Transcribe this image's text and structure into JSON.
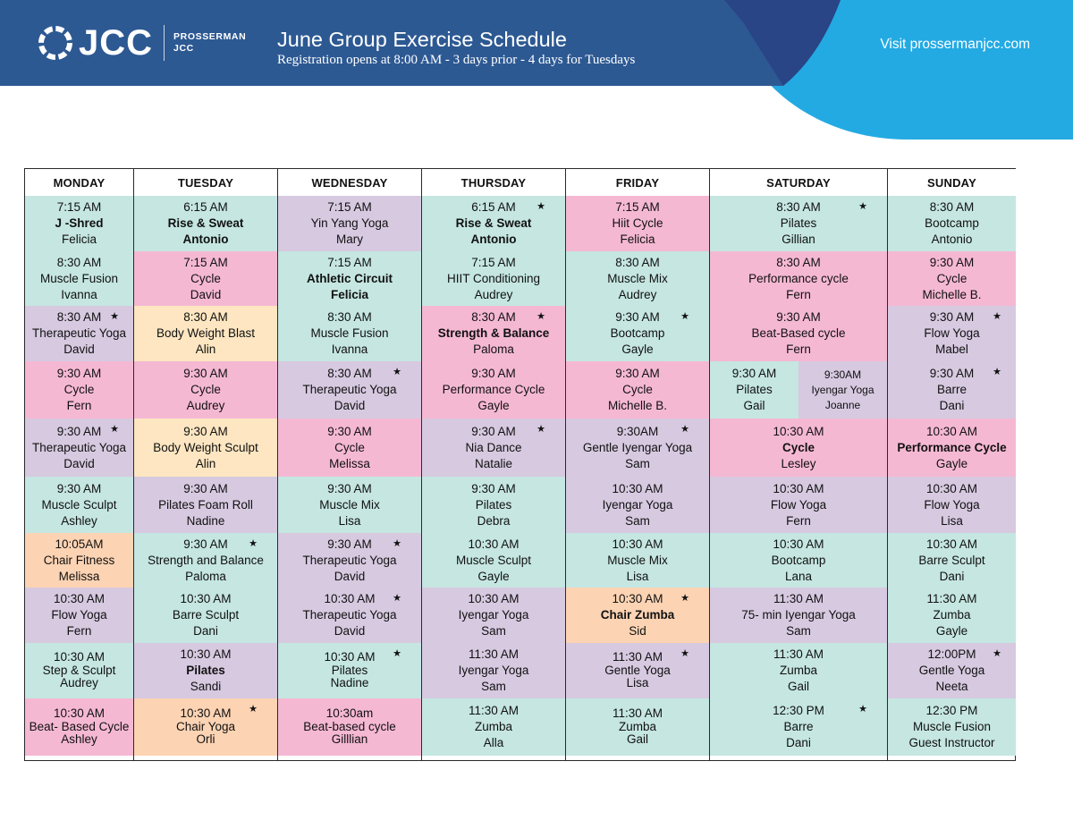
{
  "brand": {
    "wordmark": "JCC",
    "sub_line1": "PROSSERMAN",
    "sub_line2": "JCC"
  },
  "header": {
    "title": "June Group Exercise Schedule",
    "subtitle": "Registration opens at 8:00 AM - 3 days prior  - 4 days for Tuesdays",
    "link": "Visit prossermanjcc.com"
  },
  "colors": {
    "header_dark": "#2d5993",
    "header_light": "#23aae3",
    "teal": "#c5e6e1",
    "pink": "#f5b8d3",
    "lavender": "#d6c9e0",
    "yellow": "#fde6c1",
    "peach": "#fcd3b3"
  },
  "star_symbol": "★",
  "days": [
    {
      "name": "MONDAY",
      "classes": [
        {
          "time": "7:15 AM",
          "name": "J -Shred",
          "instructor": "Felicia",
          "color": "teal",
          "bold": true
        },
        {
          "time": "8:30 AM",
          "name": "Muscle Fusion",
          "instructor": "Ivanna",
          "color": "teal"
        },
        {
          "time": "8:30 AM",
          "name": "Therapeutic Yoga",
          "instructor": "David",
          "color": "lavender",
          "star": true
        },
        {
          "time": "9:30 AM",
          "name": "Cycle",
          "instructor": "Fern",
          "color": "pink"
        },
        {
          "time": "9:30 AM",
          "name": "Therapeutic Yoga",
          "instructor": "David",
          "color": "lavender",
          "star": true
        },
        {
          "time": "9:30 AM",
          "name": "Muscle Sculpt",
          "instructor": "Ashley",
          "color": "teal"
        },
        {
          "time": "10:05AM",
          "name": "Chair Fitness",
          "instructor": "Melissa",
          "color": "peach"
        },
        {
          "time": "10:30 AM",
          "name": "Flow Yoga",
          "instructor": "Fern",
          "color": "lavender"
        },
        {
          "time": "10:30 AM",
          "name": "Step & Sculpt",
          "instructor": "Audrey",
          "color": "teal",
          "tight": true
        },
        {
          "time": "10:30 AM",
          "name": "Beat- Based Cycle",
          "instructor": "Ashley",
          "color": "pink",
          "tight": true
        }
      ]
    },
    {
      "name": "TUESDAY",
      "classes": [
        {
          "time": "6:15 AM",
          "name": "Rise & Sweat",
          "instructor": "Antonio",
          "color": "teal",
          "bold": true,
          "bold_instructor": true
        },
        {
          "time": "7:15 AM",
          "name": "Cycle",
          "instructor": "David",
          "color": "pink"
        },
        {
          "time": "8:30 AM",
          "name": "Body Weight Blast",
          "instructor": "Alin",
          "color": "yellow"
        },
        {
          "time": "9:30 AM",
          "name": "Cycle",
          "instructor": "Audrey",
          "color": "pink"
        },
        {
          "time": "9:30 AM",
          "name": "Body Weight Sculpt",
          "instructor": "Alin",
          "color": "yellow"
        },
        {
          "time": "9:30 AM",
          "name": "Pilates Foam Roll",
          "instructor": "Nadine",
          "color": "lavender"
        },
        {
          "time": "9:30 AM",
          "name": "Strength and Balance",
          "instructor": "Paloma",
          "color": "teal",
          "star": true
        },
        {
          "time": "10:30 AM",
          "name": "Barre Sculpt",
          "instructor": "Dani",
          "color": "teal"
        },
        {
          "time": "10:30 AM",
          "name": "Pilates",
          "instructor": "Sandi",
          "color": "lavender",
          "bold": true
        },
        {
          "time": "10:30 AM",
          "name": "Chair Yoga",
          "instructor": "Orli",
          "color": "peach",
          "star": true,
          "tight": true
        }
      ]
    },
    {
      "name": "WEDNESDAY",
      "classes": [
        {
          "time": "7:15 AM",
          "name": "Yin Yang Yoga",
          "instructor": "Mary",
          "color": "lavender"
        },
        {
          "time": "7:15 AM",
          "name": "Athletic Circuit",
          "instructor": "Felicia",
          "color": "teal",
          "bold": true,
          "bold_instructor": true
        },
        {
          "time": "8:30 AM",
          "name": "Muscle Fusion",
          "instructor": "Ivanna",
          "color": "teal"
        },
        {
          "time": "8:30 AM",
          "name": "Therapeutic Yoga",
          "instructor": "David",
          "color": "lavender",
          "star": true
        },
        {
          "time": "9:30 AM",
          "name": "Cycle",
          "instructor": "Melissa",
          "color": "pink"
        },
        {
          "time": "9:30 AM",
          "name": "Muscle Mix",
          "instructor": "Lisa",
          "color": "teal"
        },
        {
          "time": "9:30 AM",
          "name": "Therapeutic Yoga",
          "instructor": "David",
          "color": "lavender",
          "star": true
        },
        {
          "time": "10:30 AM",
          "name": "Therapeutic Yoga",
          "instructor": "David",
          "color": "lavender",
          "star": true
        },
        {
          "time": "10:30 AM",
          "name": "Pilates",
          "instructor": "Nadine",
          "color": "teal",
          "star": true,
          "tight": true
        },
        {
          "time": "10:30am",
          "name": "Beat-based cycle",
          "instructor": "Gilllian",
          "color": "pink",
          "tight": true
        }
      ]
    },
    {
      "name": "THURSDAY",
      "classes": [
        {
          "time": "6:15 AM",
          "name": "Rise & Sweat",
          "instructor": "Antonio",
          "color": "teal",
          "bold": true,
          "bold_instructor": true,
          "star": true
        },
        {
          "time": "7:15 AM",
          "name": "HIIT Conditioning",
          "instructor": "Audrey",
          "color": "teal"
        },
        {
          "time": "8:30 AM",
          "name": "Strength & Balance",
          "instructor": "Paloma",
          "color": "pink",
          "bold": true,
          "star": true
        },
        {
          "time": "9:30 AM",
          "name": "Performance Cycle",
          "instructor": "Gayle",
          "color": "pink"
        },
        {
          "time": "9:30 AM",
          "name": "Nia Dance",
          "instructor": "Natalie",
          "color": "lavender",
          "star": true
        },
        {
          "time": "9:30 AM",
          "name": "Pilates",
          "instructor": "Debra",
          "color": "teal"
        },
        {
          "time": "10:30 AM",
          "name": "Muscle Sculpt",
          "instructor": "Gayle",
          "color": "teal"
        },
        {
          "time": "10:30 AM",
          "name": "Iyengar Yoga",
          "instructor": "Sam",
          "color": "lavender"
        },
        {
          "time": "11:30 AM",
          "name": "Iyengar Yoga",
          "instructor": "Sam",
          "color": "lavender"
        },
        {
          "time": "11:30 AM",
          "name": "Zumba",
          "instructor": "Alla",
          "color": "teal"
        }
      ]
    },
    {
      "name": "FRIDAY",
      "classes": [
        {
          "time": "7:15 AM",
          "name": "Hiit Cycle",
          "instructor": "Felicia",
          "color": "pink"
        },
        {
          "time": "8:30 AM",
          "name": "Muscle Mix",
          "instructor": "Audrey",
          "color": "teal"
        },
        {
          "time": "9:30 AM",
          "name": "Bootcamp",
          "instructor": "Gayle",
          "color": "teal",
          "star": true
        },
        {
          "time": "9:30 AM",
          "name": "Cycle",
          "instructor": "Michelle B.",
          "color": "pink"
        },
        {
          "time": "9:30AM",
          "name": "Gentle Iyengar Yoga",
          "instructor": "Sam",
          "color": "lavender",
          "star": true
        },
        {
          "time": "10:30 AM",
          "name": "Iyengar Yoga",
          "instructor": "Sam",
          "color": "lavender"
        },
        {
          "time": "10:30 AM",
          "name": "Muscle Mix",
          "instructor": "Lisa",
          "color": "teal"
        },
        {
          "time": "10:30 AM",
          "name": "Chair Zumba",
          "instructor": "Sid",
          "color": "peach",
          "bold": true,
          "star": true
        },
        {
          "time": "11:30 AM",
          "name": "Gentle Yoga",
          "instructor": "Lisa",
          "color": "lavender",
          "star": true,
          "tight": true
        },
        {
          "time": "11:30 AM",
          "name": "Zumba",
          "instructor": "Gail",
          "color": "teal",
          "tight": true
        }
      ]
    },
    {
      "name": "SATURDAY",
      "classes": [
        {
          "time": "8:30 AM",
          "name": "Pilates",
          "instructor": "Gillian",
          "color": "teal",
          "star": true
        },
        {
          "time": "8:30 AM",
          "name": "Performance cycle",
          "instructor": "Fern",
          "color": "pink"
        },
        {
          "time": "9:30 AM",
          "name": "Beat-Based cycle",
          "instructor": "Fern",
          "color": "pink"
        },
        {
          "split": true,
          "color": "lavender",
          "left": {
            "time": "9:30 AM",
            "name": "Pilates",
            "instructor": "Gail"
          },
          "right": {
            "time": "9:30AM",
            "name": "Iyengar Yoga",
            "instructor": "Joanne"
          }
        },
        {
          "time": "10:30 AM",
          "name": "Cycle",
          "instructor": "Lesley",
          "color": "pink",
          "bold": true
        },
        {
          "time": "10:30 AM",
          "name": "Flow Yoga",
          "instructor": "Fern",
          "color": "lavender"
        },
        {
          "time": "10:30 AM",
          "name": "Bootcamp",
          "instructor": "Lana",
          "color": "teal"
        },
        {
          "time": "11:30 AM",
          "name": "75- min Iyengar Yoga",
          "instructor": "Sam",
          "color": "lavender"
        },
        {
          "time": "11:30 AM",
          "name": "Zumba",
          "instructor": "Gail",
          "color": "teal"
        },
        {
          "time": "12:30 PM",
          "name": "Barre",
          "instructor": "Dani",
          "color": "teal",
          "star": true
        }
      ]
    },
    {
      "name": "SUNDAY",
      "classes": [
        {
          "time": "8:30 AM",
          "name": "Bootcamp",
          "instructor": "Antonio",
          "color": "teal"
        },
        {
          "time": "9:30 AM",
          "name": "Cycle",
          "instructor": "Michelle B.",
          "color": "pink"
        },
        {
          "time": "9:30 AM",
          "name": "Flow Yoga",
          "instructor": "Mabel",
          "color": "lavender",
          "star": true
        },
        {
          "time": "9:30 AM",
          "name": "Barre",
          "instructor": "Dani",
          "color": "lavender",
          "star": true
        },
        {
          "time": "10:30 AM",
          "name": "Performance Cycle",
          "instructor": "Gayle",
          "color": "pink",
          "bold": true
        },
        {
          "time": "10:30 AM",
          "name": "Flow Yoga",
          "instructor": "Lisa",
          "color": "lavender"
        },
        {
          "time": "10:30 AM",
          "name": "Barre Sculpt",
          "instructor": "Dani",
          "color": "teal"
        },
        {
          "time": "11:30 AM",
          "name": "Zumba",
          "instructor": "Gayle",
          "color": "teal"
        },
        {
          "time": "12:00PM",
          "name": "Gentle Yoga",
          "instructor": "Neeta",
          "color": "lavender",
          "star": true
        },
        {
          "time": "12:30 PM",
          "name": "Muscle Fusion",
          "instructor": "Guest Instructor",
          "color": "teal"
        }
      ]
    }
  ]
}
